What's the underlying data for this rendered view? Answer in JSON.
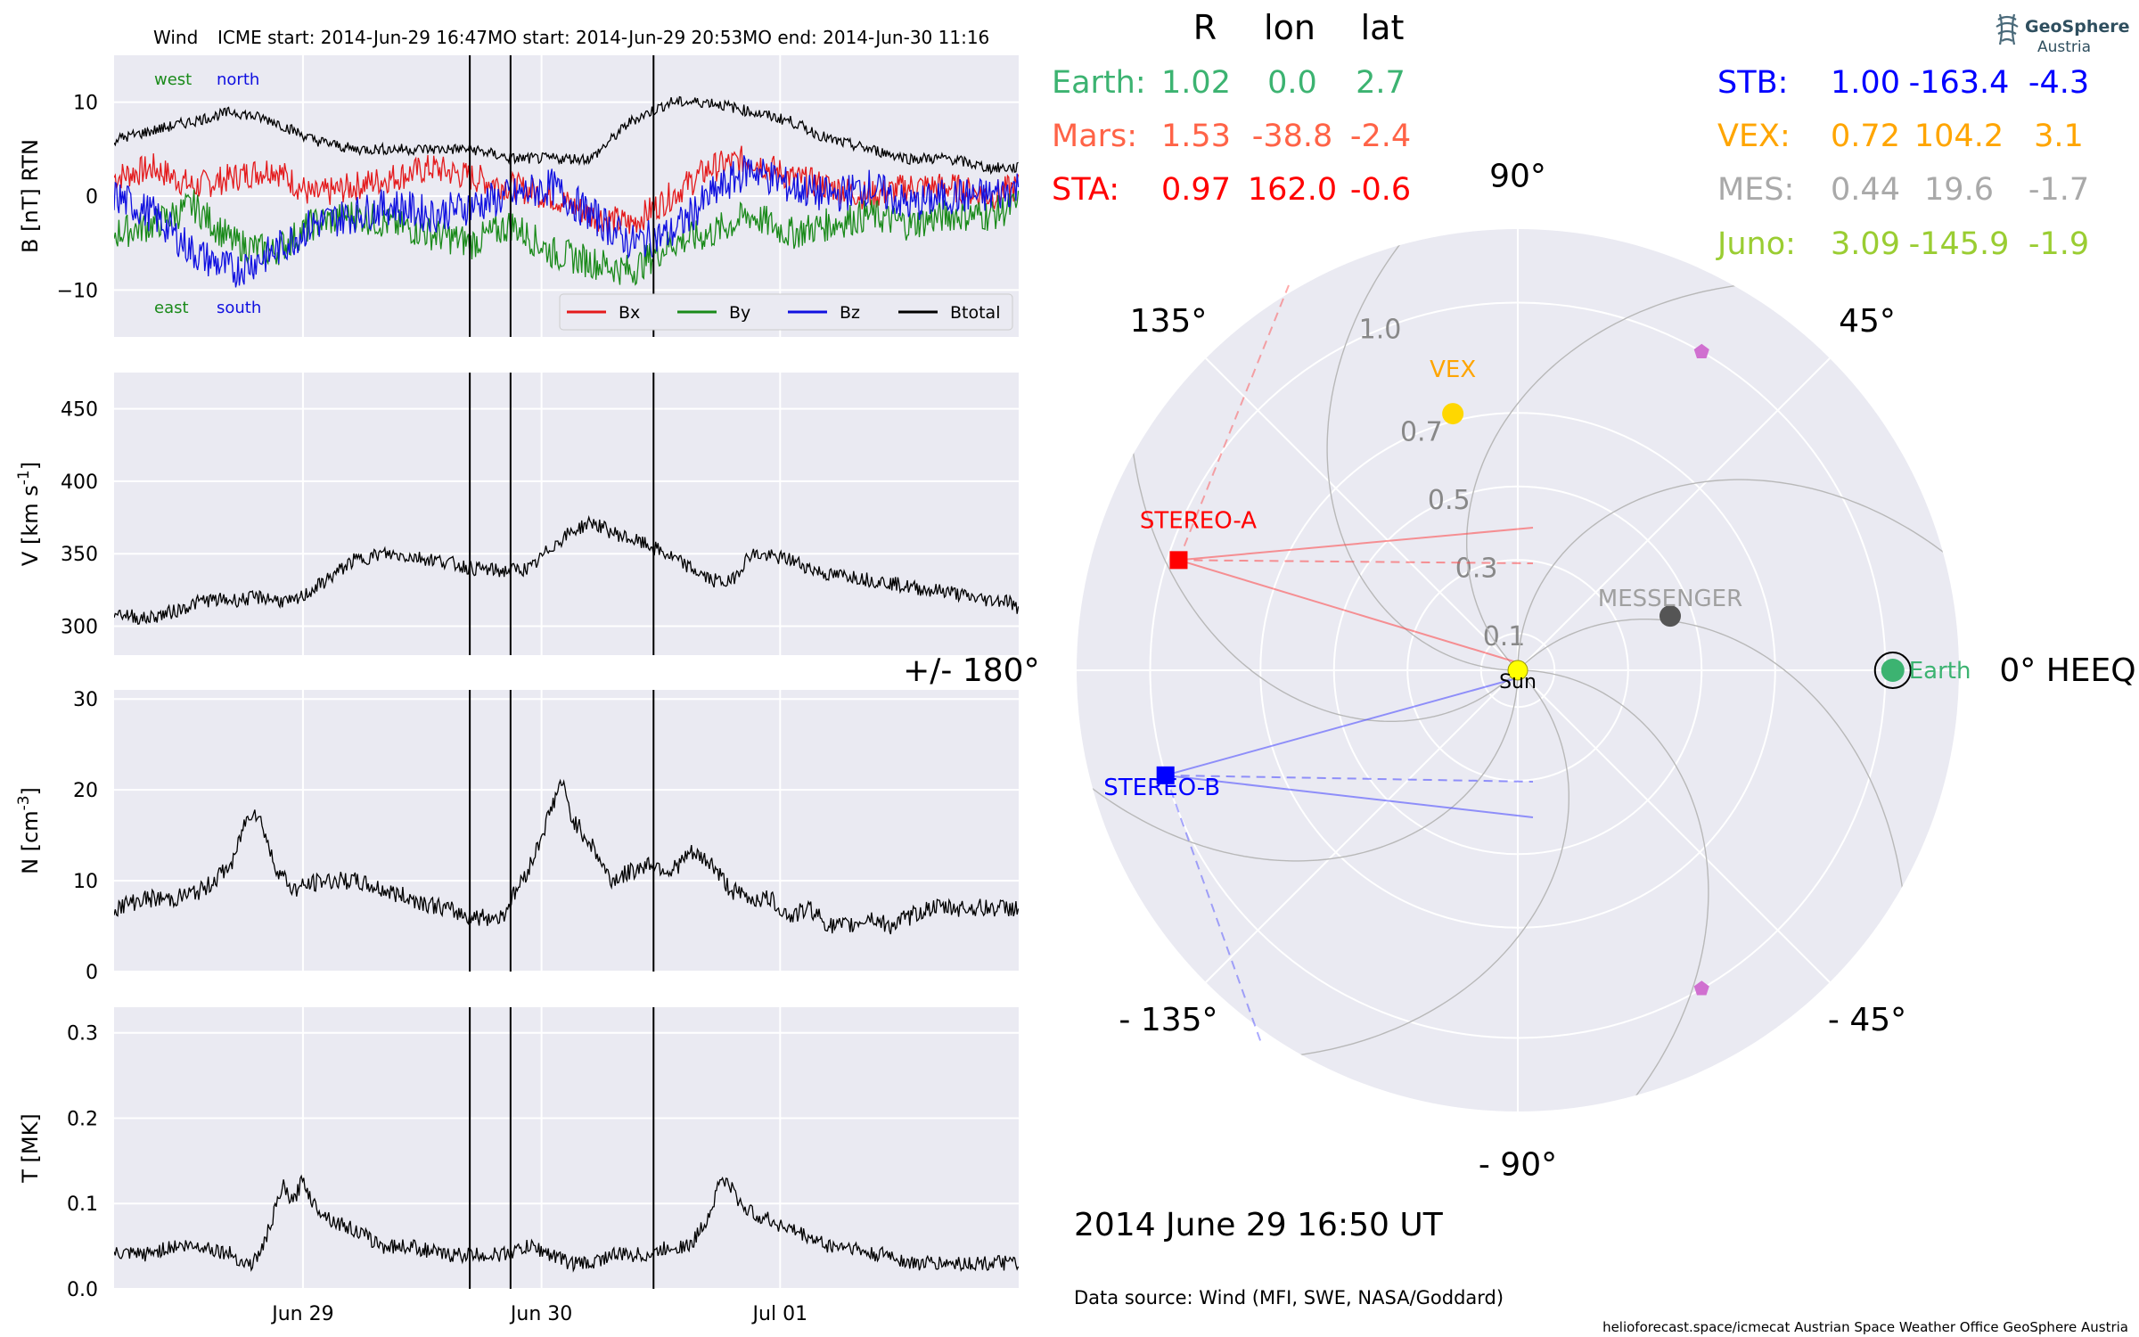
{
  "title": {
    "spacecraft": "Wind",
    "icme_start": "ICME start: 2014-Jun-29 16:47",
    "mo_start": "MO start: 2014-Jun-29 20:53",
    "mo_end": "MO end: 2014-Jun-30 11:16"
  },
  "colors": {
    "bx": "#e41a1c",
    "by": "#1a8a1a",
    "bz": "#1010e0",
    "btotal": "#000000",
    "panel_bg": "#eaeaf2",
    "earth": "#3cb371",
    "mars": "#ff6347",
    "sta": "#ff0000",
    "stb": "#0000ff",
    "vex": "#ffa500",
    "mes": "#a9a9a9",
    "juno": "#9acd32"
  },
  "time_axis": {
    "start": "2014-06-28 05:00",
    "end": "2014-07-02 00:00",
    "ticks": [
      {
        "t": "2014-06-29 00:00",
        "label": "Jun 29"
      },
      {
        "t": "2014-06-30 00:00",
        "label": "Jun 30"
      },
      {
        "t": "2014-07-01 00:00",
        "label": "Jul 01"
      }
    ],
    "event_lines": [
      "2014-06-29 16:47",
      "2014-06-29 20:53",
      "2014-06-30 11:16"
    ]
  },
  "chart_data": [
    {
      "type": "line",
      "ylabel": "B [nT] RTN",
      "ylim": [
        -15,
        15
      ],
      "yticks": [
        -10,
        0,
        10
      ],
      "annotations": {
        "west": "west",
        "north": "north",
        "east": "east",
        "south": "south"
      },
      "legend": {
        "placement": "bottom-right",
        "entries": [
          "Bx",
          "By",
          "Bz",
          "Btotal"
        ]
      },
      "series": [
        {
          "name": "Bx",
          "x_hours": [
            0,
            4,
            8,
            12,
            16,
            20,
            24,
            28,
            32,
            36,
            40,
            44,
            48,
            52,
            56,
            60,
            64,
            68,
            72,
            76,
            80,
            84,
            88,
            91
          ],
          "values": [
            2,
            3,
            1,
            2,
            3,
            0,
            1,
            2,
            3,
            2,
            1,
            0,
            -2,
            -3,
            0,
            3,
            4,
            2,
            1,
            0,
            1,
            1,
            0,
            1
          ]
        },
        {
          "name": "By",
          "x_hours": [
            0,
            4,
            8,
            12,
            16,
            20,
            24,
            28,
            32,
            36,
            40,
            44,
            48,
            52,
            56,
            60,
            64,
            68,
            72,
            76,
            80,
            84,
            88,
            91
          ],
          "values": [
            -4,
            -3,
            -1,
            -5,
            -6,
            -3,
            -2,
            -3,
            -4,
            -5,
            -3,
            -6,
            -7,
            -8,
            -5,
            -4,
            -2,
            -4,
            -3,
            -2,
            -3,
            -2,
            -2,
            -1
          ]
        },
        {
          "name": "Bz",
          "x_hours": [
            0,
            4,
            8,
            12,
            16,
            20,
            24,
            28,
            32,
            36,
            40,
            44,
            48,
            52,
            56,
            60,
            64,
            68,
            72,
            76,
            80,
            84,
            88,
            91
          ],
          "values": [
            0,
            -2,
            -6,
            -8,
            -6,
            -3,
            -2,
            -1,
            -2,
            -1,
            0,
            1,
            -2,
            -5,
            -4,
            0,
            3,
            1,
            0,
            1,
            -1,
            0,
            0,
            1
          ]
        },
        {
          "name": "Btotal",
          "x_hours": [
            0,
            4,
            8,
            12,
            16,
            20,
            24,
            28,
            32,
            36,
            40,
            44,
            48,
            52,
            56,
            60,
            64,
            68,
            72,
            76,
            80,
            84,
            88,
            91
          ],
          "values": [
            6,
            7,
            8,
            9,
            8,
            6,
            5,
            5,
            5,
            5,
            4,
            4,
            4,
            8,
            10,
            10,
            9,
            8,
            6,
            5,
            4,
            4,
            3,
            3
          ]
        }
      ]
    },
    {
      "type": "line",
      "ylabel": "V [km s$^{-1}$]",
      "ylim": [
        280,
        475
      ],
      "yticks": [
        300,
        350,
        400,
        450
      ],
      "series": [
        {
          "name": "V",
          "x_hours": [
            0,
            3,
            6,
            9,
            12,
            15,
            18,
            21,
            24,
            27,
            30,
            33,
            36,
            39,
            42,
            44,
            46,
            48,
            50,
            52,
            54,
            56,
            58,
            60,
            62,
            64,
            66,
            68,
            70,
            72,
            74,
            76,
            78,
            80,
            82,
            84,
            86,
            88,
            90,
            91
          ],
          "values": [
            310,
            305,
            310,
            318,
            318,
            320,
            316,
            330,
            345,
            350,
            348,
            345,
            340,
            338,
            340,
            355,
            365,
            372,
            365,
            360,
            355,
            348,
            340,
            332,
            330,
            350,
            348,
            346,
            340,
            335,
            335,
            332,
            330,
            327,
            325,
            324,
            320,
            318,
            318,
            310
          ]
        }
      ]
    },
    {
      "type": "line",
      "ylabel": "N [cm$^{-3}$]",
      "ylim": [
        0,
        31
      ],
      "yticks": [
        0,
        10,
        20,
        30
      ],
      "series": [
        {
          "name": "N",
          "x_hours": [
            0,
            3,
            6,
            9,
            12,
            13,
            14,
            15,
            16,
            18,
            21,
            24,
            27,
            30,
            33,
            36,
            39,
            40,
            42,
            44,
            45,
            46,
            48,
            50,
            52,
            54,
            56,
            58,
            60,
            62,
            64,
            66,
            68,
            70,
            72,
            74,
            76,
            78,
            80,
            82,
            84,
            86,
            88,
            90,
            91
          ],
          "values": [
            7,
            8,
            8,
            9,
            12,
            16,
            18,
            16,
            12,
            9,
            10,
            10,
            9,
            8,
            7,
            6,
            6,
            8,
            12,
            18,
            21,
            17,
            14,
            10,
            11,
            12,
            11,
            13,
            12,
            9,
            8,
            8,
            6,
            7,
            5,
            5,
            6,
            5,
            6,
            7,
            7,
            7,
            7,
            7,
            7
          ]
        }
      ]
    },
    {
      "type": "line",
      "ylabel": "T [MK]",
      "ylim": [
        0,
        0.33
      ],
      "yticks": [
        0.0,
        0.1,
        0.2,
        0.3
      ],
      "series": [
        {
          "name": "T",
          "x_hours": [
            0,
            3,
            6,
            9,
            12,
            13,
            14,
            15,
            17,
            18,
            19,
            20,
            22,
            24,
            27,
            30,
            33,
            36,
            39,
            42,
            44,
            46,
            48,
            50,
            52,
            54,
            56,
            58,
            60,
            61,
            62,
            63,
            64,
            66,
            68,
            70,
            72,
            74,
            76,
            78,
            80,
            82,
            84,
            86,
            88,
            90,
            91
          ],
          "values": [
            0.04,
            0.04,
            0.05,
            0.05,
            0.04,
            0.03,
            0.03,
            0.05,
            0.12,
            0.1,
            0.13,
            0.1,
            0.08,
            0.07,
            0.05,
            0.05,
            0.04,
            0.04,
            0.04,
            0.05,
            0.04,
            0.03,
            0.03,
            0.04,
            0.04,
            0.04,
            0.05,
            0.05,
            0.09,
            0.13,
            0.12,
            0.1,
            0.09,
            0.08,
            0.07,
            0.06,
            0.05,
            0.05,
            0.04,
            0.04,
            0.03,
            0.03,
            0.03,
            0.03,
            0.03,
            0.03,
            0.03
          ]
        }
      ]
    }
  ],
  "positions_table": {
    "headers": [
      "R",
      "lon",
      "lat"
    ],
    "left": [
      {
        "label": "Earth:",
        "r": "1.02",
        "lon": "0.0",
        "lat": "2.7",
        "color": "#3cb371"
      },
      {
        "label": "Mars:",
        "r": "1.53",
        "lon": "-38.8",
        "lat": "-2.4",
        "color": "#ff6347"
      },
      {
        "label": "STA:",
        "r": "0.97",
        "lon": "162.0",
        "lat": "-0.6",
        "color": "#ff0000"
      }
    ],
    "right": [
      {
        "label": "STB:",
        "r": "1.00",
        "lon": "-163.4",
        "lat": "-4.3",
        "color": "#0000ff"
      },
      {
        "label": "VEX:",
        "r": "0.72",
        "lon": "104.2",
        "lat": "3.1",
        "color": "#ffa500"
      },
      {
        "label": "MES:",
        "r": "0.44",
        "lon": "19.6",
        "lat": "-1.7",
        "color": "#a9a9a9"
      },
      {
        "label": "Juno:",
        "r": "3.09",
        "lon": "-145.9",
        "lat": "-1.9",
        "color": "#9acd32"
      }
    ]
  },
  "polar": {
    "type": "scatter",
    "rlim": [
      0,
      1.2
    ],
    "radial_ticks": [
      {
        "r": 0.1,
        "label": "0.1"
      },
      {
        "r": 0.3,
        "label": "0.3"
      },
      {
        "r": 0.5,
        "label": "0.5"
      },
      {
        "r": 0.7,
        "label": "0.7"
      },
      {
        "r": 1.0,
        "label": "1.0"
      }
    ],
    "angle_labels": [
      {
        "deg": 0,
        "label": "0° HEEQ"
      },
      {
        "deg": 45,
        "label": "45°"
      },
      {
        "deg": 90,
        "label": "90°"
      },
      {
        "deg": 135,
        "label": "135°"
      },
      {
        "deg": 180,
        "label": "+/- 180°"
      },
      {
        "deg": -135,
        "label": "- 135°"
      },
      {
        "deg": -90,
        "label": "- 90°"
      },
      {
        "deg": -45,
        "label": "- 45°"
      }
    ],
    "objects": [
      {
        "name": "Sun",
        "label": "Sun",
        "r": 0.0,
        "lon": 0,
        "color": "#ffff00",
        "marker": "circle"
      },
      {
        "name": "Earth",
        "label": "Earth",
        "r": 1.02,
        "lon": 0.0,
        "color": "#3cb371",
        "marker": "earth"
      },
      {
        "name": "MESSENGER",
        "label": "MESSENGER",
        "r": 0.44,
        "lon": 19.6,
        "color": "#555555",
        "marker": "circle"
      },
      {
        "name": "VEX",
        "label": "VEX",
        "r": 0.72,
        "lon": 104.2,
        "color": "#ffd700",
        "marker": "circle"
      },
      {
        "name": "STEREO-A",
        "label": "STEREO-A",
        "r": 0.97,
        "lon": 162.0,
        "color": "#ff0000",
        "marker": "square"
      },
      {
        "name": "STEREO-B",
        "label": "STEREO-B",
        "r": 1.0,
        "lon": -163.4,
        "color": "#0000ff",
        "marker": "square"
      },
      {
        "name": "Mars",
        "label": "",
        "r": 1.53,
        "lon": -38.8,
        "color": "#d070d0",
        "marker": "pentagon"
      }
    ],
    "unlabeled_markers": [
      {
        "name": "marker-pentagon-upper",
        "r": 1.0,
        "lon": 60,
        "color": "#d070d0",
        "marker": "pentagon"
      },
      {
        "name": "marker-pentagon-lower",
        "r": 1.0,
        "lon": -60,
        "color": "#d070d0",
        "marker": "pentagon"
      }
    ]
  },
  "datetime": "2014 June 29  16:50 UT",
  "data_source": "Data source: Wind (MFI, SWE, NASA/Goddard)",
  "footer": "helioforecast.space/icmecat   Austrian Space Weather Office   GeoSphere Austria",
  "logo": {
    "name": "GeoSphere",
    "sub": "Austria"
  }
}
